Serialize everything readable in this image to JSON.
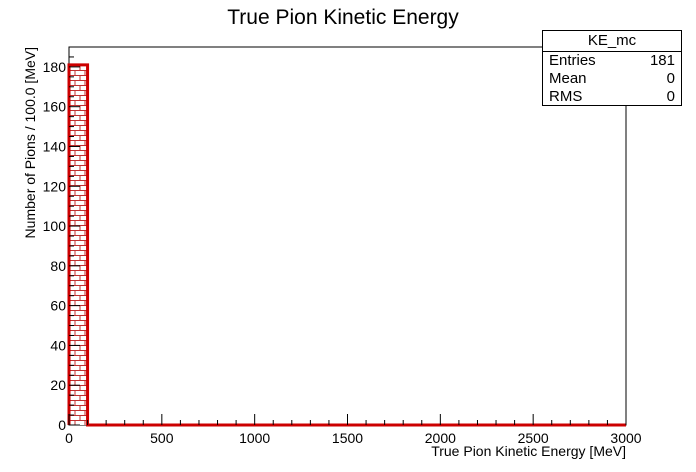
{
  "chart_data": {
    "type": "bar",
    "title": "True Pion Kinetic Energy",
    "xlabel": "True Pion Kinetic Energy [MeV]",
    "ylabel": "Number of Pions / 100.0 [MeV]",
    "xlim": [
      0,
      3000
    ],
    "ylim": [
      0,
      190
    ],
    "bin_width": 100,
    "x_ticks": [
      0,
      500,
      1000,
      1500,
      2000,
      2500,
      3000
    ],
    "y_ticks": [
      0,
      20,
      40,
      60,
      80,
      100,
      120,
      140,
      160,
      180
    ],
    "bin_edges": [
      0,
      100,
      200,
      300,
      400,
      500,
      600,
      700,
      800,
      900,
      1000,
      1100,
      1200,
      1300,
      1400,
      1500,
      1600,
      1700,
      1800,
      1900,
      2000,
      2100,
      2200,
      2300,
      2400,
      2500,
      2600,
      2700,
      2800,
      2900,
      3000
    ],
    "values": [
      181,
      0,
      0,
      0,
      0,
      0,
      0,
      0,
      0,
      0,
      0,
      0,
      0,
      0,
      0,
      0,
      0,
      0,
      0,
      0,
      0,
      0,
      0,
      0,
      0,
      0,
      0,
      0,
      0,
      0
    ],
    "color": "#cc0000",
    "fill_pattern": "brick"
  },
  "stats": {
    "name": "KE_mc",
    "rows": [
      {
        "label": "Entries",
        "value": "181"
      },
      {
        "label": "Mean",
        "value": "0"
      },
      {
        "label": "RMS",
        "value": "0"
      }
    ]
  }
}
